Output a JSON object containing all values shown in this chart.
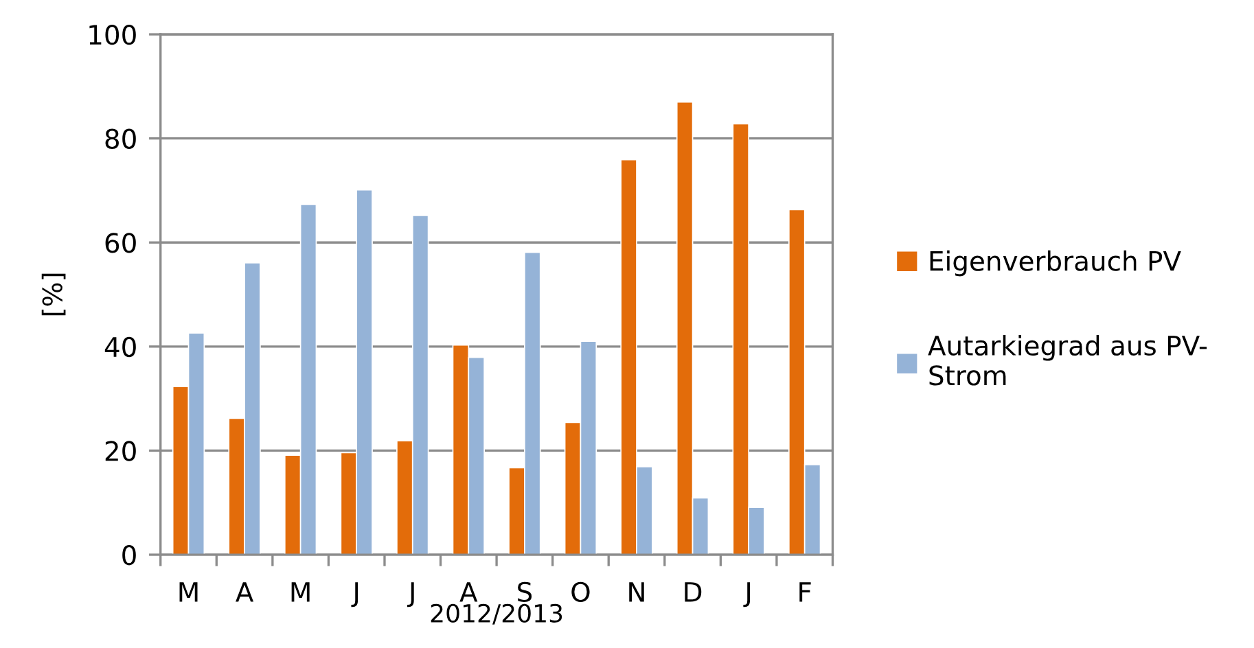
{
  "chart_data": {
    "type": "bar",
    "xlabel": "2012/2013",
    "ylabel": "[%]",
    "categories": [
      "M",
      "A",
      "M",
      "J",
      "J",
      "A",
      "S",
      "O",
      "N",
      "D",
      "J",
      "F"
    ],
    "series": [
      {
        "name": "Eigenverbrauch PV",
        "color": "#e36c0a",
        "values": [
          32.3,
          26.2,
          19.1,
          19.6,
          21.9,
          40.3,
          16.7,
          25.4,
          75.9,
          87.0,
          82.8,
          66.3
        ]
      },
      {
        "name": "Autarkiegrad aus PV-\nStrom",
        "color": "#95b3d7",
        "values": [
          42.6,
          56.1,
          67.3,
          70.1,
          65.2,
          37.9,
          58.1,
          41.0,
          16.9,
          10.9,
          9.1,
          17.3
        ]
      }
    ],
    "ylim": [
      0,
      100
    ],
    "yticks": [
      0,
      20,
      40,
      60,
      80,
      100
    ],
    "grid": "y",
    "legend": "right"
  }
}
